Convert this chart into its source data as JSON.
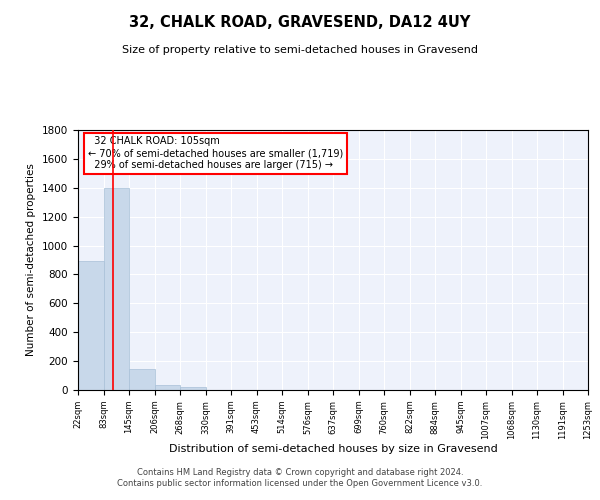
{
  "title": "32, CHALK ROAD, GRAVESEND, DA12 4UY",
  "subtitle": "Size of property relative to semi-detached houses in Gravesend",
  "xlabel": "Distribution of semi-detached houses by size in Gravesend",
  "ylabel": "Number of semi-detached properties",
  "bar_color": "#c8d8ea",
  "bar_edge_color": "#a8c0d8",
  "bin_labels": [
    "22sqm",
    "83sqm",
    "145sqm",
    "206sqm",
    "268sqm",
    "330sqm",
    "391sqm",
    "453sqm",
    "514sqm",
    "576sqm",
    "637sqm",
    "699sqm",
    "760sqm",
    "822sqm",
    "884sqm",
    "945sqm",
    "1007sqm",
    "1068sqm",
    "1130sqm",
    "1191sqm",
    "1253sqm"
  ],
  "bar_heights": [
    890,
    1400,
    145,
    35,
    20,
    0,
    0,
    0,
    0,
    0,
    0,
    0,
    0,
    0,
    0,
    0,
    0,
    0,
    0,
    0
  ],
  "ylim": [
    0,
    1800
  ],
  "yticks": [
    0,
    200,
    400,
    600,
    800,
    1000,
    1200,
    1400,
    1600,
    1800
  ],
  "property_label": "32 CHALK ROAD: 105sqm",
  "smaller_pct": 70,
  "smaller_count": 1719,
  "larger_pct": 29,
  "larger_count": 715,
  "footer_line1": "Contains HM Land Registry data © Crown copyright and database right 2024.",
  "footer_line2": "Contains public sector information licensed under the Open Government Licence v3.0.",
  "background_color": "#eef2fb"
}
